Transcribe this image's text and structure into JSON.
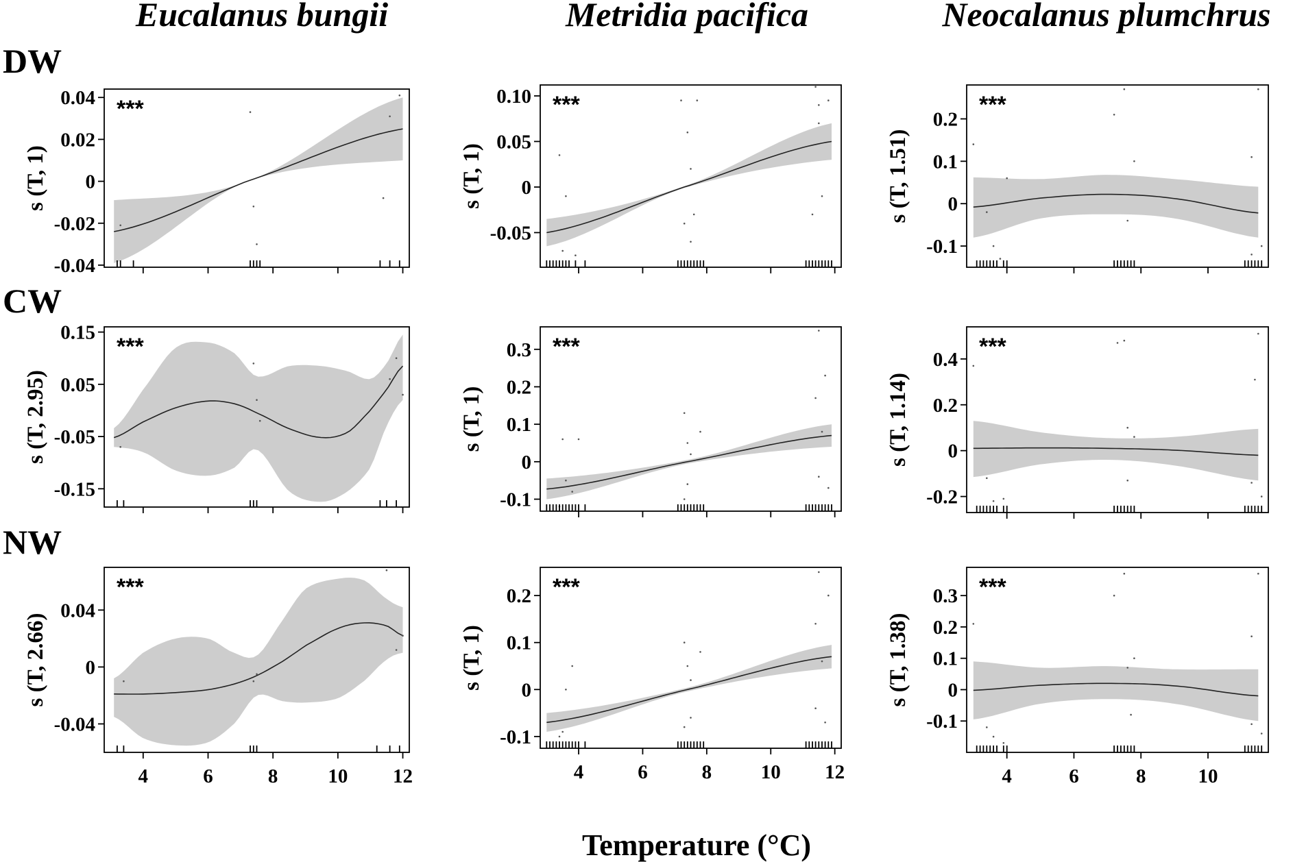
{
  "figure": {
    "species": [
      "Eucalanus bungii",
      "Metridia pacifica",
      "Neocalanus plumchrus"
    ],
    "regions": [
      "DW",
      "CW",
      "NW"
    ],
    "xlabel": "Temperature (°C)",
    "colors": {
      "band": "#cdcdcd",
      "line": "#222222",
      "frame": "#000000",
      "text": "#000000"
    }
  },
  "chart_data": [
    {
      "type": "line",
      "region": "DW",
      "species": "Eucalanus bungii",
      "ylabel": "s (T, 1)",
      "significance": "***",
      "xlim": [
        2.8,
        12.2
      ],
      "ylim": [
        -0.041,
        0.044
      ],
      "yticks": [
        -0.04,
        -0.02,
        0,
        0.02,
        0.04
      ],
      "ytick_labels": [
        "-0.04",
        "-0.02",
        "0",
        "0.02",
        "0.04"
      ],
      "xticks": [
        4,
        6,
        8,
        10,
        12
      ],
      "xtick_labels": [
        "",
        "",
        "",
        "",
        ""
      ],
      "x": [
        3.1,
        7.2,
        12.0
      ],
      "fit": [
        -0.024,
        0,
        0.025
      ],
      "lower": [
        -0.039,
        0,
        0.01
      ],
      "upper": [
        -0.009,
        0,
        0.04
      ],
      "rug": [
        3.2,
        3.3,
        3.7,
        7.3,
        7.4,
        7.5,
        7.6,
        11.3,
        11.6,
        11.9
      ],
      "points": [
        [
          7.3,
          0.033
        ],
        [
          7.4,
          -0.012
        ],
        [
          7.5,
          -0.03
        ],
        [
          11.4,
          -0.008
        ],
        [
          11.6,
          0.031
        ],
        [
          11.9,
          0.041
        ],
        [
          3.3,
          -0.021
        ]
      ]
    },
    {
      "type": "line",
      "region": "DW",
      "species": "Metridia pacifica",
      "ylabel": "s (T, 1)",
      "significance": "***",
      "xlim": [
        2.8,
        12.2
      ],
      "ylim": [
        -0.088,
        0.112
      ],
      "yticks": [
        -0.05,
        0,
        0.05,
        0.1
      ],
      "ytick_labels": [
        "-0.05",
        "0",
        "0.05",
        "0.10"
      ],
      "xticks": [
        4,
        6,
        8,
        10,
        12
      ],
      "xtick_labels": [
        "",
        "",
        "",
        "",
        ""
      ],
      "x": [
        3.0,
        7.3,
        11.9
      ],
      "fit": [
        -0.05,
        0,
        0.05
      ],
      "lower": [
        -0.065,
        -0.001,
        0.03
      ],
      "upper": [
        -0.035,
        0.001,
        0.07
      ],
      "rug": [
        3.0,
        3.1,
        3.2,
        3.3,
        3.4,
        3.5,
        3.6,
        3.7,
        3.9,
        4.2,
        7.1,
        7.2,
        7.3,
        7.4,
        7.5,
        7.6,
        7.7,
        7.8,
        7.9,
        11.1,
        11.2,
        11.3,
        11.4,
        11.5,
        11.6,
        11.7,
        11.8,
        11.9
      ],
      "points": [
        [
          3.4,
          0.035
        ],
        [
          3.6,
          -0.01
        ],
        [
          3.5,
          -0.07
        ],
        [
          3.9,
          -0.075
        ],
        [
          7.2,
          0.095
        ],
        [
          7.4,
          0.06
        ],
        [
          7.5,
          0.02
        ],
        [
          7.3,
          -0.04
        ],
        [
          7.5,
          -0.06
        ],
        [
          7.6,
          -0.03
        ],
        [
          7.7,
          0.095
        ],
        [
          11.4,
          0.11
        ],
        [
          11.5,
          0.09
        ],
        [
          11.6,
          -0.01
        ],
        [
          11.3,
          -0.03
        ],
        [
          11.5,
          0.07
        ],
        [
          11.8,
          0.095
        ]
      ]
    },
    {
      "type": "line",
      "region": "DW",
      "species": "Neocalanus plumchrus",
      "ylabel": "s (T, 1.51)",
      "significance": "***",
      "xlim": [
        2.8,
        11.8
      ],
      "ylim": [
        -0.15,
        0.28
      ],
      "yticks": [
        -0.1,
        0,
        0.1,
        0.2
      ],
      "ytick_labels": [
        "-0.1",
        "0",
        "0.1",
        "0.2"
      ],
      "xticks": [
        4,
        6,
        8,
        10
      ],
      "xtick_labels": [
        "",
        "",
        "",
        ""
      ],
      "x": [
        3.0,
        5.0,
        7.0,
        9.0,
        11.5
      ],
      "fit": [
        -0.008,
        0.013,
        0.022,
        0.012,
        -0.022
      ],
      "lower": [
        -0.08,
        -0.035,
        -0.025,
        -0.035,
        -0.08
      ],
      "upper": [
        0.062,
        0.058,
        0.068,
        0.058,
        0.04
      ],
      "rug": [
        3.1,
        3.2,
        3.3,
        3.4,
        3.5,
        3.6,
        3.7,
        3.9,
        4.0,
        7.2,
        7.3,
        7.4,
        7.5,
        7.6,
        7.7,
        7.8,
        11.1,
        11.2,
        11.3,
        11.4,
        11.5,
        11.6
      ],
      "points": [
        [
          3.0,
          0.14
        ],
        [
          3.4,
          -0.02
        ],
        [
          3.6,
          -0.1
        ],
        [
          3.8,
          -0.13
        ],
        [
          4.0,
          0.06
        ],
        [
          7.2,
          0.21
        ],
        [
          7.5,
          0.27
        ],
        [
          7.6,
          -0.04
        ],
        [
          7.8,
          0.1
        ],
        [
          11.3,
          0.11
        ],
        [
          11.5,
          0.27
        ],
        [
          11.3,
          -0.12
        ],
        [
          11.6,
          -0.1
        ]
      ]
    },
    {
      "type": "line",
      "region": "CW",
      "species": "Eucalanus bungii",
      "ylabel": "s (T, 2.95)",
      "significance": "***",
      "xlim": [
        2.8,
        12.2
      ],
      "ylim": [
        -0.185,
        0.16
      ],
      "yticks": [
        -0.15,
        -0.05,
        0.05,
        0.15
      ],
      "ytick_labels": [
        "-0.15",
        "-0.05",
        "0.05",
        "0.15"
      ],
      "xticks": [
        4,
        6,
        8,
        10,
        12
      ],
      "xtick_labels": [
        "",
        "",
        "",
        "",
        ""
      ],
      "x": [
        3.1,
        4.0,
        5.0,
        6.0,
        6.8,
        7.5,
        8.5,
        9.5,
        10.3,
        11.0,
        11.5,
        12.0
      ],
      "fit": [
        -0.052,
        -0.022,
        0.005,
        0.018,
        0.013,
        -0.005,
        -0.035,
        -0.052,
        -0.042,
        0.0,
        0.04,
        0.085
      ],
      "lower": [
        -0.07,
        -0.08,
        -0.115,
        -0.125,
        -0.11,
        -0.075,
        -0.155,
        -0.175,
        -0.155,
        -0.11,
        -0.03,
        0.02
      ],
      "upper": [
        -0.034,
        0.04,
        0.12,
        0.13,
        0.11,
        0.065,
        0.085,
        0.085,
        0.075,
        0.06,
        0.09,
        0.145
      ],
      "rug": [
        3.2,
        3.4,
        7.3,
        7.4,
        7.5,
        11.3,
        11.5,
        11.8
      ],
      "points": [
        [
          3.3,
          -0.07
        ],
        [
          7.4,
          0.09
        ],
        [
          7.5,
          0.02
        ],
        [
          7.6,
          -0.02
        ],
        [
          11.6,
          0.06
        ],
        [
          11.8,
          0.1
        ],
        [
          12.0,
          0.03
        ]
      ]
    },
    {
      "type": "line",
      "region": "CW",
      "species": "Metridia pacifica",
      "ylabel": "s (T, 1)",
      "significance": "***",
      "xlim": [
        2.8,
        12.2
      ],
      "ylim": [
        -0.132,
        0.36
      ],
      "yticks": [
        -0.1,
        0,
        0.1,
        0.2,
        0.3
      ],
      "ytick_labels": [
        "-0.1",
        "0",
        "0.1",
        "0.2",
        "0.3"
      ],
      "xticks": [
        4,
        6,
        8,
        10,
        12
      ],
      "xtick_labels": [
        "",
        "",
        "",
        "",
        ""
      ],
      "x": [
        3.0,
        7.4,
        11.9
      ],
      "fit": [
        -0.073,
        0,
        0.07
      ],
      "lower": [
        -0.1,
        -0.005,
        0.04
      ],
      "upper": [
        -0.045,
        0.005,
        0.1
      ],
      "rug": [
        3.0,
        3.1,
        3.2,
        3.3,
        3.4,
        3.5,
        3.6,
        3.7,
        3.8,
        3.9,
        4.0,
        4.2,
        7.1,
        7.2,
        7.3,
        7.4,
        7.5,
        7.6,
        7.7,
        7.8,
        7.9,
        11.1,
        11.2,
        11.3,
        11.4,
        11.5,
        11.6,
        11.7,
        11.8,
        11.9
      ],
      "points": [
        [
          3.5,
          0.06
        ],
        [
          3.6,
          -0.05
        ],
        [
          3.8,
          -0.08
        ],
        [
          3.4,
          -0.12
        ],
        [
          4.0,
          0.06
        ],
        [
          7.3,
          0.13
        ],
        [
          7.4,
          0.05
        ],
        [
          7.5,
          0.02
        ],
        [
          7.4,
          -0.06
        ],
        [
          7.3,
          -0.1
        ],
        [
          7.8,
          0.08
        ],
        [
          11.4,
          0.17
        ],
        [
          11.5,
          0.35
        ],
        [
          11.6,
          0.08
        ],
        [
          11.5,
          -0.04
        ],
        [
          11.7,
          0.23
        ],
        [
          11.8,
          -0.07
        ]
      ]
    },
    {
      "type": "line",
      "region": "CW",
      "species": "Neocalanus plumchrus",
      "ylabel": "s (T, 1.14)",
      "significance": "***",
      "xlim": [
        2.8,
        11.8
      ],
      "ylim": [
        -0.27,
        0.54
      ],
      "yticks": [
        -0.2,
        0,
        0.2,
        0.4
      ],
      "ytick_labels": [
        "-0.2",
        "0",
        "0.2",
        "0.4"
      ],
      "xticks": [
        4,
        6,
        8,
        10
      ],
      "xtick_labels": [
        "",
        "",
        "",
        ""
      ],
      "x": [
        3.0,
        5.0,
        7.0,
        9.0,
        11.5
      ],
      "fit": [
        0.01,
        0.012,
        0.01,
        0.002,
        -0.02
      ],
      "lower": [
        -0.115,
        -0.06,
        -0.04,
        -0.065,
        -0.13
      ],
      "upper": [
        0.13,
        0.08,
        0.055,
        0.06,
        0.095
      ],
      "rug": [
        3.1,
        3.2,
        3.3,
        3.4,
        3.5,
        3.6,
        3.7,
        3.9,
        4.0,
        7.2,
        7.3,
        7.4,
        7.5,
        7.6,
        7.7,
        7.8,
        11.1,
        11.2,
        11.3,
        11.4,
        11.5,
        11.6
      ],
      "points": [
        [
          3.0,
          0.37
        ],
        [
          3.4,
          -0.12
        ],
        [
          3.6,
          -0.22
        ],
        [
          3.9,
          -0.21
        ],
        [
          7.3,
          0.47
        ],
        [
          7.5,
          0.48
        ],
        [
          7.6,
          0.1
        ],
        [
          7.8,
          0.06
        ],
        [
          7.6,
          -0.13
        ],
        [
          11.4,
          0.31
        ],
        [
          11.5,
          0.51
        ],
        [
          11.3,
          -0.14
        ],
        [
          11.6,
          -0.2
        ]
      ]
    },
    {
      "type": "line",
      "region": "NW",
      "species": "Eucalanus bungii",
      "ylabel": "s (T, 2.66)",
      "significance": "***",
      "xlim": [
        2.8,
        12.2
      ],
      "ylim": [
        -0.06,
        0.07
      ],
      "yticks": [
        -0.04,
        0,
        0.04
      ],
      "ytick_labels": [
        "-0.04",
        "0",
        "0.04"
      ],
      "xticks": [
        4,
        6,
        8,
        10,
        12
      ],
      "xtick_labels": [
        "4",
        "6",
        "8",
        "10",
        "12"
      ],
      "x": [
        3.1,
        4.0,
        5.0,
        6.0,
        6.8,
        7.5,
        8.3,
        9.0,
        10.0,
        10.8,
        11.5,
        12.0
      ],
      "fit": [
        -0.019,
        -0.019,
        -0.018,
        -0.016,
        -0.012,
        -0.006,
        0.004,
        0.015,
        0.027,
        0.031,
        0.029,
        0.022
      ],
      "lower": [
        -0.035,
        -0.05,
        -0.055,
        -0.053,
        -0.04,
        -0.02,
        -0.024,
        -0.025,
        -0.022,
        -0.01,
        0.005,
        0.01
      ],
      "upper": [
        -0.008,
        0.01,
        0.02,
        0.02,
        0.01,
        0.008,
        0.033,
        0.055,
        0.062,
        0.061,
        0.048,
        0.042
      ],
      "rug": [
        3.2,
        3.4,
        7.3,
        7.4,
        7.5,
        11.2,
        11.6,
        11.9
      ],
      "points": [
        [
          3.4,
          -0.01
        ],
        [
          7.4,
          -0.01
        ],
        [
          7.5,
          -0.005
        ],
        [
          11.5,
          0.068
        ],
        [
          11.8,
          0.012
        ],
        [
          12.0,
          0.022
        ]
      ]
    },
    {
      "type": "line",
      "region": "NW",
      "species": "Metridia pacifica",
      "ylabel": "s (T, 1)",
      "significance": "***",
      "xlim": [
        2.8,
        12.2
      ],
      "ylim": [
        -0.125,
        0.26
      ],
      "yticks": [
        -0.1,
        0,
        0.1,
        0.2
      ],
      "ytick_labels": [
        "-0.1",
        "0",
        "0.1",
        "0.2"
      ],
      "xticks": [
        4,
        6,
        8,
        10,
        12
      ],
      "xtick_labels": [
        "4",
        "6",
        "8",
        "10",
        "12"
      ],
      "x": [
        3.0,
        7.4,
        11.9
      ],
      "fit": [
        -0.07,
        0,
        0.07
      ],
      "lower": [
        -0.09,
        -0.004,
        0.045
      ],
      "upper": [
        -0.05,
        0.004,
        0.095
      ],
      "rug": [
        3.0,
        3.1,
        3.2,
        3.3,
        3.4,
        3.5,
        3.6,
        3.7,
        3.8,
        3.9,
        4.0,
        4.2,
        7.1,
        7.2,
        7.3,
        7.4,
        7.5,
        7.6,
        7.7,
        7.8,
        7.9,
        11.1,
        11.2,
        11.3,
        11.4,
        11.5,
        11.6,
        11.7,
        11.8,
        11.9
      ],
      "points": [
        [
          3.6,
          0.0
        ],
        [
          3.8,
          0.05
        ],
        [
          3.4,
          -0.1
        ],
        [
          3.5,
          -0.09
        ],
        [
          7.3,
          0.1
        ],
        [
          7.4,
          0.05
        ],
        [
          7.5,
          0.02
        ],
        [
          7.5,
          -0.06
        ],
        [
          7.3,
          -0.08
        ],
        [
          7.8,
          0.08
        ],
        [
          11.4,
          0.14
        ],
        [
          11.5,
          0.25
        ],
        [
          11.6,
          0.06
        ],
        [
          11.4,
          -0.04
        ],
        [
          11.8,
          0.2
        ],
        [
          11.7,
          -0.07
        ]
      ]
    },
    {
      "type": "line",
      "region": "NW",
      "species": "Neocalanus plumchrus",
      "ylabel": "s (T, 1.38)",
      "significance": "***",
      "xlim": [
        2.8,
        11.8
      ],
      "ylim": [
        -0.2,
        0.39
      ],
      "yticks": [
        -0.1,
        0,
        0.1,
        0.2,
        0.3
      ],
      "ytick_labels": [
        "-0.1",
        "0",
        "0.1",
        "0.2",
        "0.3"
      ],
      "xticks": [
        4,
        6,
        8,
        10
      ],
      "xtick_labels": [
        "4",
        "6",
        "8",
        "10"
      ],
      "x": [
        3.0,
        5.0,
        7.0,
        9.0,
        11.5
      ],
      "fit": [
        -0.002,
        0.014,
        0.02,
        0.012,
        -0.02
      ],
      "lower": [
        -0.095,
        -0.045,
        -0.03,
        -0.045,
        -0.1
      ],
      "upper": [
        0.09,
        0.07,
        0.075,
        0.065,
        0.065
      ],
      "rug": [
        3.1,
        3.2,
        3.3,
        3.4,
        3.5,
        3.6,
        3.7,
        3.9,
        4.0,
        7.2,
        7.3,
        7.4,
        7.5,
        7.6,
        7.7,
        7.8,
        11.1,
        11.2,
        11.3,
        11.4,
        11.5,
        11.6
      ],
      "points": [
        [
          3.0,
          0.21
        ],
        [
          3.4,
          -0.12
        ],
        [
          3.6,
          -0.15
        ],
        [
          3.9,
          -0.17
        ],
        [
          7.2,
          0.3
        ],
        [
          7.5,
          0.37
        ],
        [
          7.6,
          0.07
        ],
        [
          7.8,
          0.1
        ],
        [
          7.7,
          -0.08
        ],
        [
          11.3,
          0.17
        ],
        [
          11.5,
          0.37
        ],
        [
          11.3,
          -0.11
        ],
        [
          11.6,
          -0.14
        ]
      ]
    }
  ]
}
